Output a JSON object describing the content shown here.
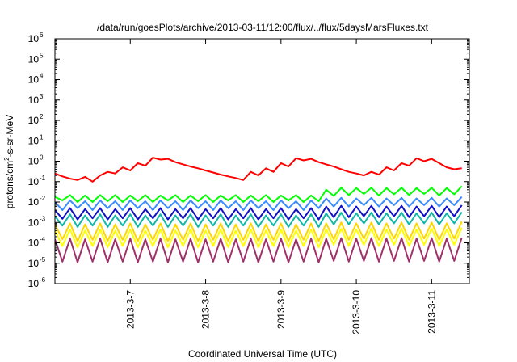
{
  "chart_data": {
    "type": "line",
    "title": "/data/run/goesPlots/archive/2013-03-11/12:00/flux/../flux/5daysMarsFluxes.txt",
    "xlabel": "Coordinated Universal Time (UTC)",
    "ylabel_parts": {
      "base": "protons/cm",
      "exp": "2",
      "rest": "-s-sr-MeV"
    },
    "yscale": "log",
    "ylim": [
      1e-06,
      1000000.0
    ],
    "y_ticks": [
      {
        "value": 1e-06,
        "base": "10",
        "exp": "-6"
      },
      {
        "value": 1e-05,
        "base": "10",
        "exp": "-5"
      },
      {
        "value": 0.0001,
        "base": "10",
        "exp": "-4"
      },
      {
        "value": 0.001,
        "base": "10",
        "exp": "-3"
      },
      {
        "value": 0.01,
        "base": "10",
        "exp": "-2"
      },
      {
        "value": 0.1,
        "base": "10",
        "exp": "-1"
      },
      {
        "value": 1,
        "base": "10",
        "exp": "0"
      },
      {
        "value": 10,
        "base": "10",
        "exp": "1"
      },
      {
        "value": 100,
        "base": "10",
        "exp": "2"
      },
      {
        "value": 1000,
        "base": "10",
        "exp": "3"
      },
      {
        "value": 10000.0,
        "base": "10",
        "exp": "4"
      },
      {
        "value": 100000.0,
        "base": "10",
        "exp": "5"
      },
      {
        "value": 1000000.0,
        "base": "10",
        "exp": "6"
      }
    ],
    "xlim": [
      "2013-03-06 00:00",
      "2013-03-11 12:00"
    ],
    "x_ticks": [
      {
        "value": "2013-03-07 00:00",
        "label": "2013-3-7"
      },
      {
        "value": "2013-03-08 00:00",
        "label": "2013-3-8"
      },
      {
        "value": "2013-03-09 00:00",
        "label": "2013-3-9"
      },
      {
        "value": "2013-03-10 00:00",
        "label": "2013-3-10"
      },
      {
        "value": "2013-03-11 00:00",
        "label": "2013-3-11"
      }
    ],
    "grid": false,
    "legend": "none",
    "sampling": "sawtooth profile: 55 samples per series every 2.4 hours from 2013-03-06 00:00",
    "series": [
      {
        "color": "#ff0000",
        "values": [
          0.25,
          0.18,
          0.14,
          0.12,
          0.17,
          0.1,
          0.2,
          0.3,
          0.25,
          0.5,
          0.35,
          0.8,
          0.6,
          1.5,
          1.2,
          1.3,
          0.9,
          0.7,
          0.55,
          0.45,
          0.35,
          0.28,
          0.22,
          0.18,
          0.15,
          0.12,
          0.3,
          0.2,
          0.45,
          0.3,
          0.8,
          0.55,
          1.4,
          1.1,
          1.3,
          0.9,
          0.7,
          0.55,
          0.4,
          0.3,
          0.25,
          0.2,
          0.3,
          0.22,
          0.5,
          0.35,
          0.8,
          0.6,
          1.4,
          1.0,
          1.3,
          0.8,
          0.5,
          0.4,
          0.45
        ]
      },
      {
        "color": "#00ff00",
        "values": [
          0.018,
          0.012,
          0.022,
          0.01,
          0.021,
          0.01,
          0.022,
          0.011,
          0.022,
          0.01,
          0.021,
          0.011,
          0.022,
          0.01,
          0.021,
          0.012,
          0.022,
          0.01,
          0.021,
          0.011,
          0.022,
          0.01,
          0.021,
          0.012,
          0.022,
          0.01,
          0.021,
          0.011,
          0.022,
          0.01,
          0.021,
          0.012,
          0.022,
          0.01,
          0.021,
          0.011,
          0.04,
          0.02,
          0.05,
          0.022,
          0.048,
          0.025,
          0.05,
          0.021,
          0.048,
          0.024,
          0.05,
          0.022,
          0.048,
          0.025,
          0.05,
          0.021,
          0.048,
          0.024,
          0.06
        ]
      },
      {
        "color": "#3a8cff",
        "values": [
          0.01,
          0.004,
          0.012,
          0.005,
          0.011,
          0.004,
          0.012,
          0.005,
          0.011,
          0.004,
          0.012,
          0.005,
          0.011,
          0.004,
          0.012,
          0.005,
          0.011,
          0.004,
          0.012,
          0.005,
          0.011,
          0.004,
          0.012,
          0.005,
          0.011,
          0.004,
          0.012,
          0.005,
          0.011,
          0.004,
          0.012,
          0.005,
          0.011,
          0.004,
          0.012,
          0.005,
          0.015,
          0.006,
          0.016,
          0.006,
          0.015,
          0.007,
          0.016,
          0.006,
          0.015,
          0.007,
          0.016,
          0.006,
          0.015,
          0.007,
          0.016,
          0.006,
          0.015,
          0.007,
          0.018
        ]
      },
      {
        "color": "#1010c8",
        "values": [
          0.004,
          0.0015,
          0.005,
          0.0014,
          0.0045,
          0.0016,
          0.005,
          0.0014,
          0.0045,
          0.0016,
          0.005,
          0.0014,
          0.0045,
          0.0016,
          0.005,
          0.0014,
          0.0045,
          0.0016,
          0.005,
          0.0014,
          0.0045,
          0.0016,
          0.005,
          0.0014,
          0.0045,
          0.0016,
          0.005,
          0.0014,
          0.0045,
          0.0016,
          0.005,
          0.0014,
          0.0045,
          0.0016,
          0.005,
          0.0014,
          0.006,
          0.0018,
          0.0065,
          0.0018,
          0.006,
          0.002,
          0.0065,
          0.0018,
          0.006,
          0.002,
          0.0065,
          0.0018,
          0.006,
          0.002,
          0.0065,
          0.0018,
          0.006,
          0.002,
          0.007
        ]
      },
      {
        "color": "#10b8a8",
        "values": [
          0.002,
          0.0007,
          0.0025,
          0.0006,
          0.0022,
          0.0007,
          0.0025,
          0.0006,
          0.0022,
          0.0007,
          0.0025,
          0.0006,
          0.0022,
          0.0007,
          0.0025,
          0.0006,
          0.0022,
          0.0007,
          0.0025,
          0.0006,
          0.0022,
          0.0007,
          0.0025,
          0.0006,
          0.0022,
          0.0007,
          0.0025,
          0.0006,
          0.0022,
          0.0007,
          0.0025,
          0.0006,
          0.0022,
          0.0007,
          0.0025,
          0.0006,
          0.0028,
          0.0008,
          0.003,
          0.0008,
          0.0028,
          0.0009,
          0.003,
          0.0008,
          0.0028,
          0.0009,
          0.003,
          0.0008,
          0.0028,
          0.0009,
          0.003,
          0.0008,
          0.0028,
          0.0009,
          0.0032
        ]
      },
      {
        "color": "#ffd700",
        "values": [
          0.0008,
          0.00015,
          0.0009,
          0.00012,
          0.0008,
          0.00014,
          0.0009,
          0.00012,
          0.0008,
          0.00014,
          0.0009,
          0.00012,
          0.0008,
          0.00014,
          0.0009,
          0.00012,
          0.0008,
          0.00014,
          0.0009,
          0.00012,
          0.0008,
          0.00014,
          0.0009,
          0.00012,
          0.0008,
          0.00014,
          0.0009,
          0.00012,
          0.0008,
          0.00014,
          0.0009,
          0.00012,
          0.0008,
          0.00014,
          0.0009,
          0.00012,
          0.0009,
          0.00015,
          0.001,
          0.00014,
          0.0009,
          0.00016,
          0.001,
          0.00014,
          0.0009,
          0.00016,
          0.001,
          0.00014,
          0.0009,
          0.00016,
          0.001,
          0.00014,
          0.0009,
          0.00016,
          0.0011
        ]
      },
      {
        "color": "#ffff00",
        "values": [
          0.0004,
          7e-05,
          0.00045,
          6e-05,
          0.0004,
          7e-05,
          0.00045,
          6e-05,
          0.0004,
          7e-05,
          0.00045,
          6e-05,
          0.0004,
          7e-05,
          0.00045,
          6e-05,
          0.0004,
          7e-05,
          0.00045,
          6e-05,
          0.0004,
          7e-05,
          0.00045,
          6e-05,
          0.0004,
          7e-05,
          0.00045,
          6e-05,
          0.0004,
          7e-05,
          0.00045,
          6e-05,
          0.0004,
          7e-05,
          0.00045,
          6e-05,
          0.00045,
          8e-05,
          0.0005,
          7e-05,
          0.00045,
          8e-05,
          0.0005,
          7e-05,
          0.00045,
          8e-05,
          0.0005,
          7e-05,
          0.00045,
          8e-05,
          0.0005,
          7e-05,
          0.00045,
          8e-05,
          0.00055
        ]
      },
      {
        "color": "#a0306a",
        "values": [
          0.00015,
          1.2e-05,
          0.00016,
          1.1e-05,
          0.00015,
          1.2e-05,
          0.00016,
          1.1e-05,
          0.00015,
          1.2e-05,
          0.00016,
          1.1e-05,
          0.00015,
          1.2e-05,
          0.00016,
          1.1e-05,
          0.00015,
          1.2e-05,
          0.00016,
          1.1e-05,
          0.00015,
          1.2e-05,
          0.00016,
          1.1e-05,
          0.00015,
          1.2e-05,
          0.00016,
          1.1e-05,
          0.00015,
          1.2e-05,
          0.00016,
          1.1e-05,
          0.00015,
          1.2e-05,
          0.00016,
          1.1e-05,
          0.00016,
          1.3e-05,
          0.00017,
          1.2e-05,
          0.00016,
          1.3e-05,
          0.00017,
          1.2e-05,
          0.00016,
          1.3e-05,
          0.00017,
          1.2e-05,
          0.00016,
          1.3e-05,
          0.00017,
          1.2e-05,
          0.00016,
          1.3e-05,
          0.00018
        ]
      }
    ]
  }
}
